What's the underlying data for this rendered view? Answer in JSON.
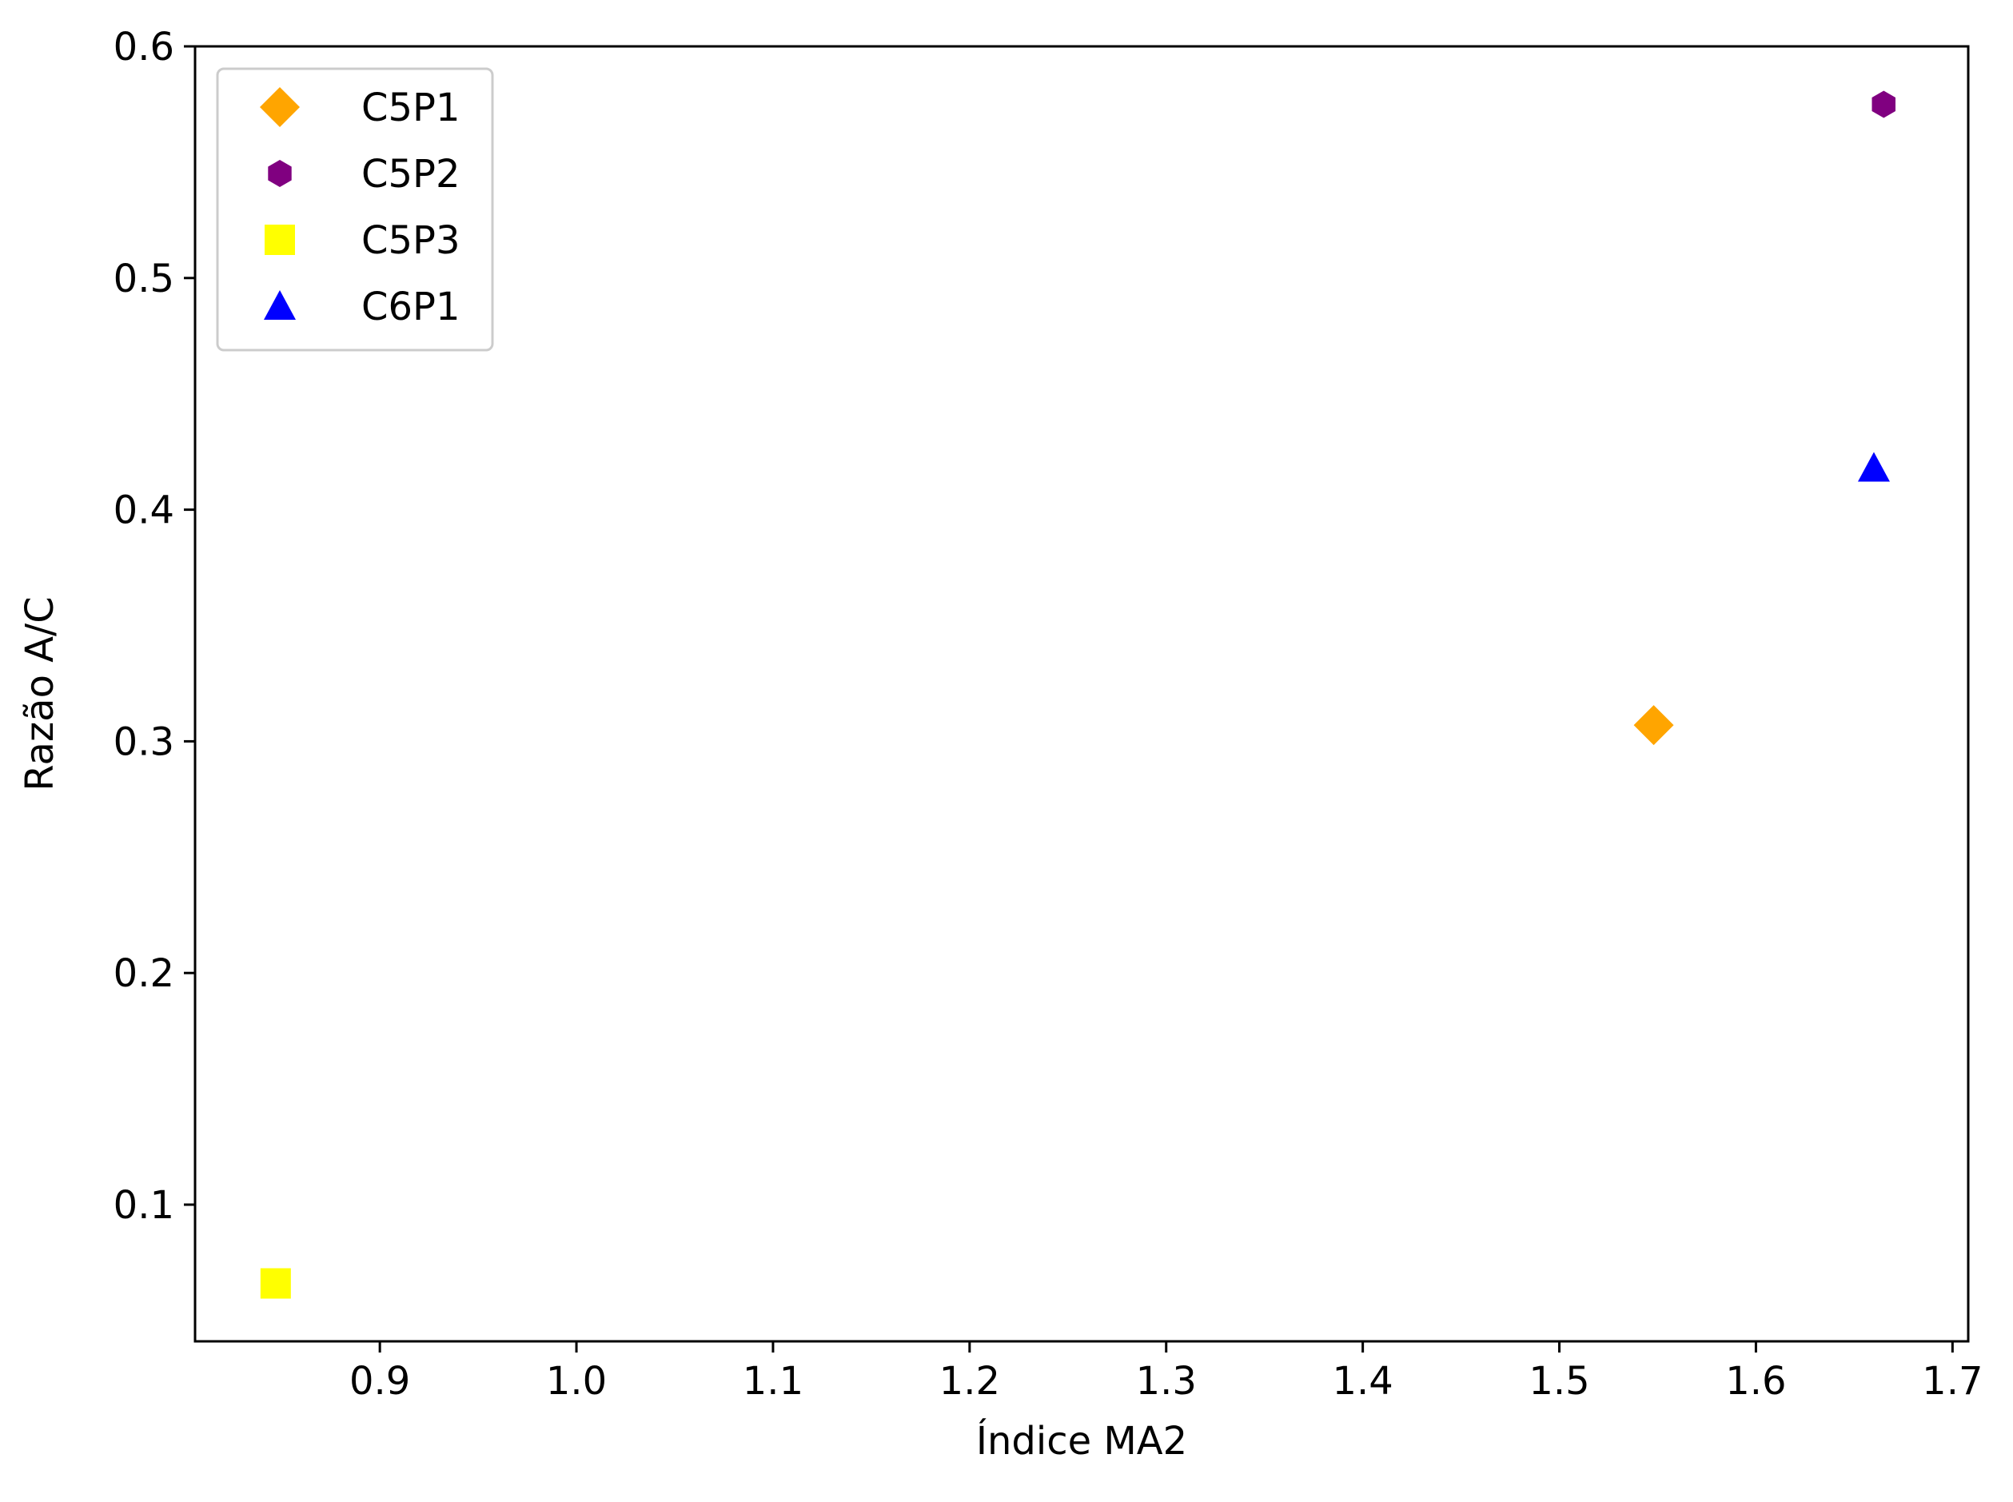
{
  "chart_data": {
    "type": "scatter",
    "title": "",
    "xlabel": "Índice MA2",
    "ylabel": "Razão A/C",
    "xlim": [
      0.806,
      1.708
    ],
    "ylim": [
      0.041,
      0.6
    ],
    "xticks": [
      "0.9",
      "1.0",
      "1.1",
      "1.2",
      "1.3",
      "1.4",
      "1.5",
      "1.6",
      "1.7"
    ],
    "yticks": [
      "0.1",
      "0.2",
      "0.3",
      "0.4",
      "0.5",
      "0.6"
    ],
    "grid": false,
    "legend_position": "top-left",
    "series": [
      {
        "name": "C5P1",
        "marker": "diamond",
        "color": "#FFA500",
        "x": [
          1.548
        ],
        "y": [
          0.307
        ]
      },
      {
        "name": "C5P2",
        "marker": "hexagon",
        "color": "#800080",
        "x": [
          1.665
        ],
        "y": [
          0.575
        ]
      },
      {
        "name": "C5P3",
        "marker": "square",
        "color": "#FFFF00",
        "x": [
          0.847
        ],
        "y": [
          0.066
        ]
      },
      {
        "name": "C6P1",
        "marker": "triangle",
        "color": "#0000FF",
        "x": [
          1.66
        ],
        "y": [
          0.418
        ]
      }
    ]
  }
}
